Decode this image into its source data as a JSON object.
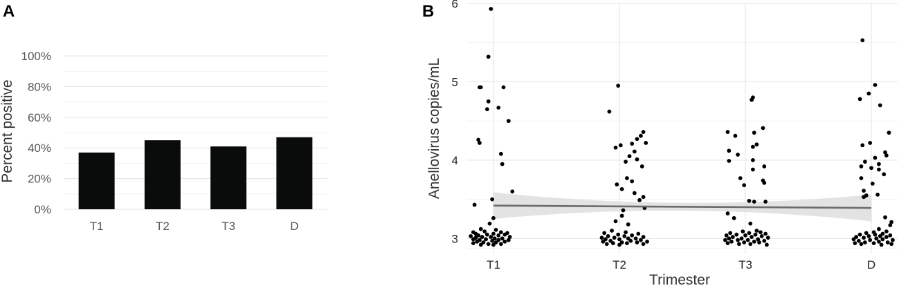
{
  "panels": {
    "a_label": "A",
    "b_label": "B"
  },
  "colors": {
    "bar": "#0a0b0b",
    "point": "#000000",
    "trend": "#6b6b6b",
    "band": "#d9d9d9"
  },
  "chart_data": [
    {
      "type": "bar",
      "categories": [
        "T1",
        "T2",
        "T3",
        "D"
      ],
      "values": [
        37,
        45,
        41,
        47
      ],
      "ylabel": "Percent positive",
      "ylim": [
        0,
        100
      ],
      "yticks": [
        "0%",
        "20%",
        "40%",
        "60%",
        "80%",
        "100%"
      ],
      "grid": true
    },
    {
      "type": "scatter",
      "categories": [
        "T1",
        "T2",
        "T3",
        "D"
      ],
      "xlabel": "Trimester",
      "ylabel": "Anellovirus copies/mL",
      "ylim": [
        2.8,
        6.0
      ],
      "yticks": [
        "3",
        "4",
        "5",
        "6"
      ],
      "grid": true,
      "trend": {
        "start": 3.42,
        "end": 3.39
      },
      "points": [
        [
          [
            0.98,
            5.93
          ],
          [
            0.96,
            5.32
          ],
          [
            0.89,
            4.93
          ],
          [
            0.9,
            4.93
          ],
          [
            1.08,
            4.93
          ],
          [
            0.96,
            4.75
          ],
          [
            1.04,
            4.67
          ],
          [
            0.95,
            4.65
          ],
          [
            1.12,
            4.5
          ],
          [
            0.88,
            4.26
          ],
          [
            0.89,
            4.22
          ],
          [
            1.06,
            4.08
          ],
          [
            1.07,
            3.95
          ],
          [
            1.15,
            3.6
          ],
          [
            0.99,
            3.5
          ],
          [
            0.85,
            3.43
          ],
          [
            1.0,
            3.26
          ],
          [
            0.97,
            3.19
          ],
          [
            0.9,
            3.12
          ],
          [
            1.02,
            3.11
          ],
          [
            0.84,
            3.08
          ],
          [
            0.93,
            3.09
          ],
          [
            1.06,
            3.08
          ],
          [
            1.11,
            3.07
          ],
          [
            0.86,
            3.06
          ],
          [
            1.0,
            3.06
          ],
          [
            1.09,
            3.05
          ],
          [
            0.88,
            3.04
          ],
          [
            0.95,
            3.05
          ],
          [
            1.04,
            3.04
          ],
          [
            0.82,
            3.03
          ],
          [
            0.91,
            3.02
          ],
          [
            0.98,
            3.02
          ],
          [
            1.13,
            3.02
          ],
          [
            0.86,
            3.01
          ],
          [
            1.01,
            3.0
          ],
          [
            1.07,
            3.0
          ],
          [
            0.84,
            2.99
          ],
          [
            0.94,
            2.99
          ],
          [
            0.89,
            2.98
          ],
          [
            1.04,
            2.98
          ],
          [
            1.12,
            2.98
          ],
          [
            0.99,
            2.97
          ],
          [
            0.87,
            2.96
          ],
          [
            1.09,
            2.96
          ],
          [
            0.92,
            2.95
          ],
          [
            1.02,
            2.95
          ],
          [
            0.84,
            2.94
          ],
          [
            0.96,
            2.93
          ],
          [
            1.06,
            2.93
          ],
          [
            0.9,
            2.92
          ],
          [
            1.0,
            2.92
          ]
        ],
        [
          [
            1.99,
            4.95
          ],
          [
            1.92,
            4.62
          ],
          [
            2.19,
            4.36
          ],
          [
            2.17,
            4.31
          ],
          [
            2.14,
            4.27
          ],
          [
            2.21,
            4.22
          ],
          [
            2.1,
            4.21
          ],
          [
            2.01,
            4.19
          ],
          [
            1.97,
            4.16
          ],
          [
            2.12,
            4.11
          ],
          [
            2.08,
            4.05
          ],
          [
            2.14,
            4.01
          ],
          [
            2.05,
            3.98
          ],
          [
            2.18,
            3.92
          ],
          [
            2.06,
            3.77
          ],
          [
            2.1,
            3.73
          ],
          [
            1.98,
            3.69
          ],
          [
            2.02,
            3.63
          ],
          [
            2.12,
            3.58
          ],
          [
            2.19,
            3.53
          ],
          [
            2.16,
            3.49
          ],
          [
            2.2,
            3.39
          ],
          [
            2.03,
            3.36
          ],
          [
            2.02,
            3.29
          ],
          [
            1.97,
            3.22
          ],
          [
            2.07,
            3.18
          ],
          [
            1.94,
            3.1
          ],
          [
            2.05,
            3.08
          ],
          [
            1.88,
            3.07
          ],
          [
            2.15,
            3.06
          ],
          [
            1.99,
            3.05
          ],
          [
            2.1,
            3.04
          ],
          [
            1.91,
            3.03
          ],
          [
            2.04,
            3.03
          ],
          [
            2.19,
            3.02
          ],
          [
            1.86,
            3.01
          ],
          [
            1.96,
            3.01
          ],
          [
            2.13,
            3.0
          ],
          [
            2.07,
            3.0
          ],
          [
            1.89,
            2.99
          ],
          [
            2.0,
            2.99
          ],
          [
            2.17,
            2.98
          ],
          [
            1.93,
            2.97
          ],
          [
            2.09,
            2.97
          ],
          [
            2.22,
            2.96
          ],
          [
            1.87,
            2.96
          ],
          [
            2.02,
            2.95
          ],
          [
            2.14,
            2.95
          ],
          [
            1.95,
            2.94
          ],
          [
            2.06,
            2.94
          ],
          [
            1.9,
            2.93
          ],
          [
            2.19,
            2.93
          ],
          [
            2.0,
            2.92
          ]
        ],
        [
          [
            3.06,
            4.8
          ],
          [
            3.05,
            4.77
          ],
          [
            2.86,
            4.36
          ],
          [
            3.14,
            4.41
          ],
          [
            3.07,
            4.35
          ],
          [
            2.92,
            4.31
          ],
          [
            3.09,
            4.2
          ],
          [
            3.06,
            4.17
          ],
          [
            2.87,
            4.12
          ],
          [
            2.94,
            4.07
          ],
          [
            3.06,
            4.0
          ],
          [
            2.87,
            3.99
          ],
          [
            3.15,
            3.92
          ],
          [
            3.06,
            3.88
          ],
          [
            2.96,
            3.77
          ],
          [
            3.14,
            3.74
          ],
          [
            3.15,
            3.71
          ],
          [
            2.99,
            3.68
          ],
          [
            3.03,
            3.48
          ],
          [
            3.07,
            3.47
          ],
          [
            3.16,
            3.47
          ],
          [
            2.86,
            3.32
          ],
          [
            2.91,
            3.26
          ],
          [
            3.04,
            3.19
          ],
          [
            3.09,
            3.1
          ],
          [
            2.98,
            3.09
          ],
          [
            3.12,
            3.08
          ],
          [
            2.88,
            3.07
          ],
          [
            3.03,
            3.07
          ],
          [
            3.16,
            3.06
          ],
          [
            2.93,
            3.05
          ],
          [
            3.08,
            3.05
          ],
          [
            2.85,
            3.04
          ],
          [
            3.0,
            3.04
          ],
          [
            3.13,
            3.03
          ],
          [
            2.9,
            3.02
          ],
          [
            3.05,
            3.02
          ],
          [
            3.18,
            3.01
          ],
          [
            2.87,
            3.0
          ],
          [
            2.97,
            3.0
          ],
          [
            3.1,
            2.99
          ],
          [
            2.84,
            2.98
          ],
          [
            2.94,
            2.98
          ],
          [
            3.02,
            2.98
          ],
          [
            3.15,
            2.97
          ],
          [
            2.89,
            2.96
          ],
          [
            3.07,
            2.96
          ],
          [
            2.99,
            2.95
          ],
          [
            3.11,
            2.95
          ],
          [
            2.86,
            2.94
          ],
          [
            2.95,
            2.93
          ],
          [
            3.04,
            2.93
          ],
          [
            3.17,
            2.92
          ]
        ],
        [
          [
            3.93,
            5.53
          ],
          [
            4.03,
            4.96
          ],
          [
            3.98,
            4.85
          ],
          [
            3.91,
            4.78
          ],
          [
            4.07,
            4.7
          ],
          [
            4.14,
            4.35
          ],
          [
            3.99,
            4.22
          ],
          [
            3.93,
            4.19
          ],
          [
            4.11,
            4.1
          ],
          [
            4.12,
            4.06
          ],
          [
            4.03,
            4.03
          ],
          [
            3.95,
            3.98
          ],
          [
            4.06,
            3.95
          ],
          [
            3.92,
            3.92
          ],
          [
            4.0,
            3.9
          ],
          [
            4.06,
            3.88
          ],
          [
            4.1,
            3.82
          ],
          [
            3.92,
            3.77
          ],
          [
            4.01,
            3.7
          ],
          [
            3.94,
            3.61
          ],
          [
            3.96,
            3.55
          ],
          [
            4.05,
            3.56
          ],
          [
            3.94,
            3.53
          ],
          [
            4.11,
            3.27
          ],
          [
            4.16,
            3.21
          ],
          [
            4.15,
            3.17
          ],
          [
            4.06,
            3.12
          ],
          [
            4.12,
            3.09
          ],
          [
            4.02,
            3.08
          ],
          [
            3.96,
            3.07
          ],
          [
            4.09,
            3.06
          ],
          [
            3.91,
            3.05
          ],
          [
            4.03,
            3.05
          ],
          [
            4.15,
            3.04
          ],
          [
            3.98,
            3.03
          ],
          [
            4.07,
            3.03
          ],
          [
            3.88,
            3.02
          ],
          [
            4.12,
            3.02
          ],
          [
            3.94,
            3.01
          ],
          [
            4.04,
            3.0
          ],
          [
            3.86,
            2.99
          ],
          [
            4.09,
            2.99
          ],
          [
            4.17,
            2.98
          ],
          [
            3.99,
            2.98
          ],
          [
            3.9,
            2.97
          ],
          [
            4.06,
            2.96
          ],
          [
            4.13,
            2.95
          ],
          [
            3.95,
            2.95
          ],
          [
            3.87,
            2.94
          ],
          [
            4.02,
            2.94
          ],
          [
            4.16,
            2.93
          ],
          [
            3.92,
            2.93
          ],
          [
            4.08,
            2.92
          ]
        ]
      ]
    }
  ]
}
